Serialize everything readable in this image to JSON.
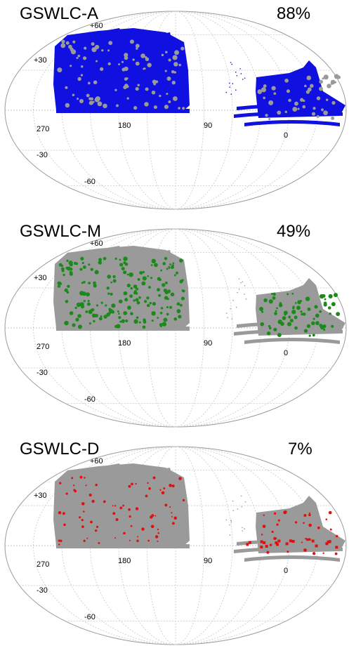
{
  "chart_data": [
    {
      "type": "scatter",
      "projection": "mollweide",
      "title": "GSWLC-A",
      "fraction_label": "88%",
      "fraction": 0.88,
      "grid": true,
      "lat_ticks": [
        "+60",
        "+30",
        "-30",
        "-60"
      ],
      "lon_ticks": [
        "270",
        "180",
        "90",
        "0"
      ],
      "series": [
        {
          "color": "#9a9a9a"
        },
        {
          "color": "#1010e0"
        }
      ]
    },
    {
      "type": "scatter",
      "projection": "mollweide",
      "title": "GSWLC-M",
      "fraction_label": "49%",
      "fraction": 0.49,
      "grid": true,
      "lat_ticks": [
        "+60",
        "+30",
        "-30",
        "-60"
      ],
      "lon_ticks": [
        "270",
        "180",
        "90",
        "0"
      ],
      "series": [
        {
          "color": "#9a9a9a"
        },
        {
          "color": "#1a8a1a"
        }
      ]
    },
    {
      "type": "scatter",
      "projection": "mollweide",
      "title": "GSWLC-D",
      "fraction_label": "7%",
      "fraction": 0.07,
      "grid": true,
      "lat_ticks": [
        "+60",
        "+30",
        "-30",
        "-60"
      ],
      "lon_ticks": [
        "270",
        "180",
        "90",
        "0"
      ],
      "series": [
        {
          "color": "#9a9a9a"
        },
        {
          "color": "#e01010"
        }
      ]
    }
  ]
}
